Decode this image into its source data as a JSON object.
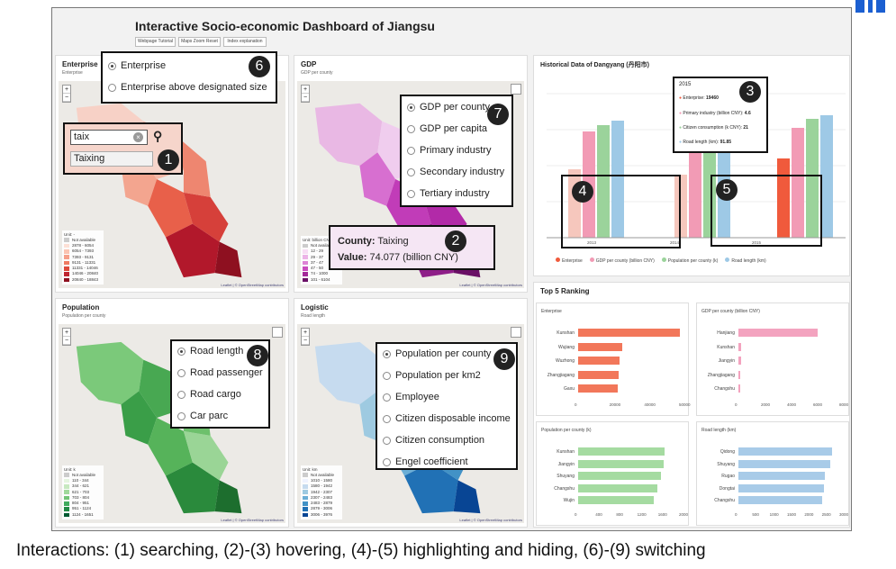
{
  "title": "Interactive Socio-economic Dashboard of Jiangsu",
  "nav_buttons": [
    "Webpage Tutorial",
    "Maps Zoom Reset",
    "Index explanation"
  ],
  "panels": {
    "enterprise": {
      "title": "Enterprise",
      "subtitle": "Enterprise",
      "legend_title": "Unit: -",
      "legend": [
        "Not available",
        "2878 - 6054",
        "6054 - 7393",
        "7393 - 9131",
        "9131 - 11331",
        "11331 - 14046",
        "14046 - 20840",
        "20840 - 18843"
      ]
    },
    "gdp": {
      "title": "GDP",
      "subtitle": "GDP per county",
      "legend_title": "Unit: billion CNY",
      "legend": [
        "Not available",
        "12 - 29",
        "29 - 37",
        "37 - 47",
        "47 - 50",
        "74 - 1000",
        "101 - 6104"
      ]
    },
    "population": {
      "title": "Population",
      "subtitle": "Population per county",
      "legend_title": "Unit: k",
      "legend": [
        "Not available",
        "110 - 344",
        "344 - 621",
        "621 - 703",
        "703 - 804",
        "804 - 951",
        "951 - 1124",
        "1124 - 1651"
      ]
    },
    "logistic": {
      "title": "Logistic",
      "subtitle": "Road length",
      "legend_title": "Unit: km",
      "legend": [
        "Not available",
        "1010 - 1580",
        "1580 - 1942",
        "1942 - 2307",
        "2307 - 2483",
        "2483 - 2879",
        "2879 - 3006",
        "3006 - 3976"
      ]
    }
  },
  "map_attribution": "Leaflet | © OpenStreetMap contributors",
  "search": {
    "value": "taix",
    "suggestion": "Taixing"
  },
  "enterprise_options": [
    "Enterprise",
    "Enterprise above designated size"
  ],
  "gdp_options": [
    "GDP per county",
    "GDP per capita",
    "Primary industry",
    "Secondary industry",
    "Tertiary industry"
  ],
  "logistic_options": [
    "Road length",
    "Road passenger",
    "Road cargo",
    "Car parc"
  ],
  "population_options": [
    "Population per county",
    "Population per km2",
    "Employee",
    "Citizen disposable income",
    "Citizen consumption",
    "Engel coefficient"
  ],
  "gdp_tooltip": {
    "county_label": "County:",
    "county": "Taixing",
    "value_label": "Value:",
    "value": "74.077 (billion CNY)"
  },
  "historical": {
    "title": "Historical Data of Dangyang (丹阳市)",
    "tooltip": {
      "year": "2015",
      "rows": [
        {
          "label": "Enterprise:",
          "value": "19460",
          "color": "#f05a3c"
        },
        {
          "label": "Primary industry (billion CNY):",
          "value": "4.6",
          "color": "#f29bb5"
        },
        {
          "label": "Citizen consumption (k CNY):",
          "value": "21",
          "color": "#9bd39b"
        },
        {
          "label": "Road length (km):",
          "value": "91.85",
          "color": "#9ec9e6"
        }
      ]
    },
    "legend": [
      "Enterprise",
      "GDP per county (billion CNY)",
      "Population per county (k)",
      "Road length (km)"
    ],
    "legend_colors": [
      "#f05a3c",
      "#f29bb5",
      "#9bd39b",
      "#9ec9e6"
    ],
    "years": [
      "2013",
      "2014",
      "2015"
    ]
  },
  "ranking": {
    "title": "Top 5 Ranking",
    "charts": [
      {
        "title": "Enterprise",
        "color": "#f2775a",
        "labels": [
          "Kunshan",
          "Wujiang",
          "Wuzhong",
          "Zhangjiagang",
          "Gaxu"
        ],
        "values": [
          48500,
          21000,
          19800,
          19200,
          19000
        ],
        "max": 50000,
        "ticks": [
          "0",
          "20000",
          "40000",
          "50000"
        ]
      },
      {
        "title": "GDP per county (billion CNY)",
        "color": "#f3a3bf",
        "labels": [
          "Hanjiang",
          "Kunshan",
          "Jiangyin",
          "Zhangjiagang",
          "Changshu"
        ],
        "values": [
          6100,
          200,
          190,
          160,
          150
        ],
        "max": 8000,
        "ticks": [
          "0",
          "2000",
          "4000",
          "6000",
          "8000"
        ]
      },
      {
        "title": "Population per county (k)",
        "color": "#a5dba1",
        "labels": [
          "Kunshan",
          "Jiangyin",
          "Shuyang",
          "Changshu",
          "Wujin"
        ],
        "values": [
          1650,
          1640,
          1580,
          1510,
          1450
        ],
        "max": 2000,
        "ticks": [
          "0",
          "400",
          "800",
          "1200",
          "1600",
          "2000"
        ]
      },
      {
        "title": "Road length (km)",
        "color": "#a8cbe8",
        "labels": [
          "Qidong",
          "Shuyang",
          "Rugao",
          "Dongtai",
          "Changshu"
        ],
        "values": [
          2700,
          2650,
          2480,
          2460,
          2400
        ],
        "max": 3000,
        "ticks": [
          "0",
          "500",
          "1000",
          "1500",
          "2000",
          "2500",
          "3000"
        ]
      }
    ]
  },
  "badges": [
    "1",
    "2",
    "3",
    "4",
    "5",
    "6",
    "7",
    "8",
    "9"
  ],
  "caption": "Interactions: (1) searching, (2)-(3) hovering, (4)-(5) highlighting and hiding, (6)-(9) switching"
}
